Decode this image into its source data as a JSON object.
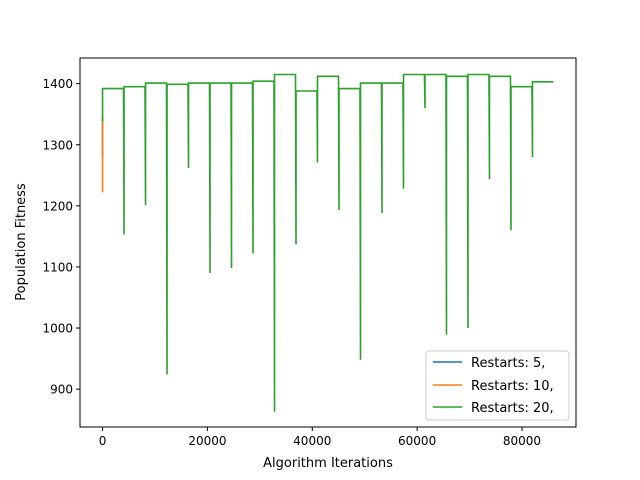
{
  "chart_data": {
    "type": "line",
    "title": "",
    "xlabel": "Algorithm Iterations",
    "ylabel": "Population Fitness",
    "xlim": [
      -4300,
      90300
    ],
    "ylim": [
      838,
      1442
    ],
    "xticks": [
      0,
      20000,
      40000,
      60000,
      80000
    ],
    "xtick_labels": [
      "0",
      "20000",
      "40000",
      "60000",
      "80000"
    ],
    "yticks": [
      900,
      1000,
      1100,
      1200,
      1300,
      1400
    ],
    "ytick_labels": [
      "900",
      "1000",
      "1100",
      "1200",
      "1300",
      "1400"
    ],
    "grid": false,
    "legend_position": "lower-right",
    "series": [
      {
        "name": "Restarts: 5,",
        "color": "#1f77b4",
        "x": [
          0,
          0,
          0
        ],
        "y": [
          1320,
          1280,
          1340
        ]
      },
      {
        "name": "Restarts: 10,",
        "color": "#ff7f0e",
        "x": [
          0,
          0,
          0
        ],
        "y": [
          1222,
          1330,
          1350
        ]
      },
      {
        "name": "Restarts: 20,",
        "color": "#2ca02c",
        "restarts": [
          {
            "start": 0,
            "end": 4000,
            "level": 1392,
            "dip": 1338
          },
          {
            "start": 4100,
            "end": 8100,
            "level": 1395,
            "dip": 1153
          },
          {
            "start": 8200,
            "end": 12200,
            "level": 1401,
            "dip": 1201
          },
          {
            "start": 12300,
            "end": 16300,
            "level": 1399,
            "dip": 924
          },
          {
            "start": 16400,
            "end": 20400,
            "level": 1401,
            "dip": 1262
          },
          {
            "start": 20500,
            "end": 24500,
            "level": 1401,
            "dip": 1090
          },
          {
            "start": 24600,
            "end": 28600,
            "level": 1401,
            "dip": 1098
          },
          {
            "start": 28700,
            "end": 32700,
            "level": 1404,
            "dip": 1122
          },
          {
            "start": 32800,
            "end": 36800,
            "level": 1415,
            "dip": 863
          },
          {
            "start": 36900,
            "end": 40900,
            "level": 1388,
            "dip": 1137
          },
          {
            "start": 41000,
            "end": 45000,
            "level": 1412,
            "dip": 1271
          },
          {
            "start": 45100,
            "end": 49100,
            "level": 1392,
            "dip": 1193
          },
          {
            "start": 49200,
            "end": 53200,
            "level": 1401,
            "dip": 948
          },
          {
            "start": 53300,
            "end": 57300,
            "level": 1401,
            "dip": 1188
          },
          {
            "start": 57400,
            "end": 61400,
            "level": 1415,
            "dip": 1228
          },
          {
            "start": 61500,
            "end": 65500,
            "level": 1415,
            "dip": 1360
          },
          {
            "start": 65600,
            "end": 69600,
            "level": 1412,
            "dip": 989
          },
          {
            "start": 69700,
            "end": 73700,
            "level": 1415,
            "dip": 1000
          },
          {
            "start": 73800,
            "end": 77800,
            "level": 1412,
            "dip": 1244
          },
          {
            "start": 77900,
            "end": 81900,
            "level": 1395,
            "dip": 1160
          },
          {
            "start": 82000,
            "end": 86000,
            "level": 1403,
            "dip": 1280
          }
        ]
      }
    ]
  }
}
